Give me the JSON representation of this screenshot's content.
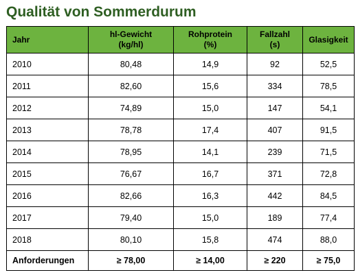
{
  "title": "Qualität von Sommerdurum",
  "colors": {
    "title": "#2e5e22",
    "header_background": "#6db33f",
    "border": "#000000"
  },
  "table": {
    "headers": [
      [
        "Jahr"
      ],
      [
        "hl-Gewicht",
        "(kg/hl)"
      ],
      [
        "Rohprotein",
        "(%)"
      ],
      [
        "Fallzahl",
        "(s)"
      ],
      [
        "Glasigkeit"
      ]
    ],
    "rows": [
      [
        "2010",
        "80,48",
        "14,9",
        "92",
        "52,5"
      ],
      [
        "2011",
        "82,60",
        "15,6",
        "334",
        "78,5"
      ],
      [
        "2012",
        "74,89",
        "15,0",
        "147",
        "54,1"
      ],
      [
        "2013",
        "78,78",
        "17,4",
        "407",
        "91,5"
      ],
      [
        "2014",
        "78,95",
        "14,1",
        "239",
        "71,5"
      ],
      [
        "2015",
        "76,67",
        "16,7",
        "371",
        "72,8"
      ],
      [
        "2016",
        "82,66",
        "16,3",
        "442",
        "84,5"
      ],
      [
        "2017",
        "79,40",
        "15,0",
        "189",
        "77,4"
      ],
      [
        "2018",
        "80,10",
        "15,8",
        "474",
        "88,0"
      ]
    ],
    "requirements": [
      "Anforderungen",
      "≥ 78,00",
      "≥ 14,00",
      "≥ 220",
      "≥ 75,0"
    ]
  }
}
